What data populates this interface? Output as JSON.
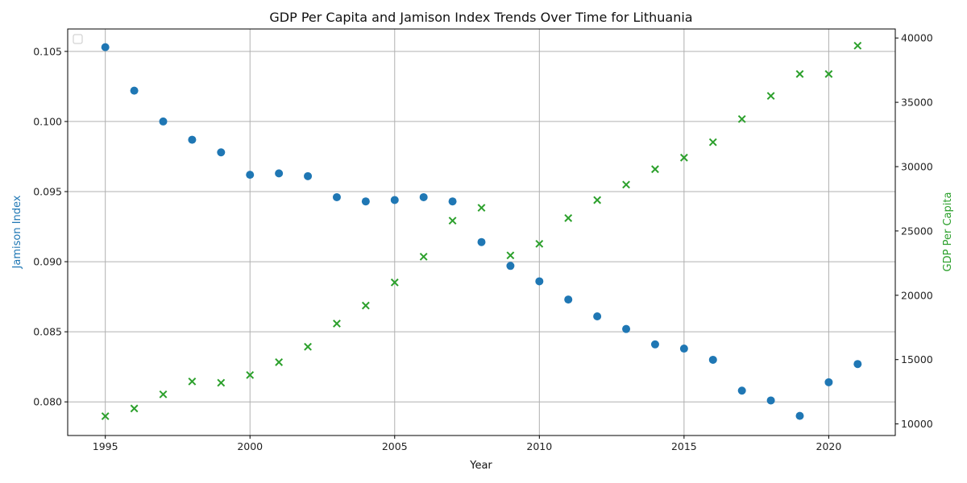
{
  "chart_data": {
    "type": "scatter",
    "title": "GDP Per Capita and Jamison Index Trends Over Time for Lithuania",
    "xlabel": "Year",
    "ylabel_left": "Jamison Index",
    "ylabel_right": "GDP Per Capita",
    "x": [
      1995,
      1996,
      1997,
      1998,
      1999,
      2000,
      2001,
      2002,
      2003,
      2004,
      2005,
      2006,
      2007,
      2008,
      2009,
      2010,
      2011,
      2012,
      2013,
      2014,
      2015,
      2016,
      2017,
      2018,
      2019,
      2020,
      2021
    ],
    "xlim": [
      1993.7,
      2022.3
    ],
    "x_ticks": [
      1995,
      2000,
      2005,
      2010,
      2015,
      2020
    ],
    "ylim_left": [
      0.0776,
      0.1066
    ],
    "y_ticks_left": [
      "0.080",
      "0.085",
      "0.090",
      "0.095",
      "0.100",
      "0.105"
    ],
    "ylim_right": [
      9100,
      40700
    ],
    "y_ticks_right": [
      "10000",
      "15000",
      "20000",
      "25000",
      "30000",
      "35000",
      "40000"
    ],
    "grid": true,
    "legend": "top-left (empty)",
    "series": [
      {
        "axis": "left",
        "marker": "circle",
        "color": "#1f77b4",
        "values": [
          0.1053,
          0.1022,
          0.1,
          0.0987,
          0.0978,
          0.0962,
          0.0963,
          0.0961,
          0.0946,
          0.0943,
          0.0944,
          0.0946,
          0.0943,
          0.0914,
          0.0897,
          0.0886,
          0.0873,
          0.0861,
          0.0852,
          0.0841,
          0.0838,
          0.083,
          0.0808,
          0.0801,
          0.079,
          0.0814,
          0.0827
        ]
      },
      {
        "axis": "right",
        "marker": "x",
        "color": "#2ca02c",
        "values": [
          10600,
          11200,
          12300,
          13300,
          13200,
          13800,
          14800,
          16000,
          17800,
          19200,
          21000,
          23000,
          25800,
          26800,
          23100,
          24000,
          26000,
          27400,
          28600,
          29800,
          30700,
          31900,
          33700,
          35500,
          37200,
          37200,
          39400
        ]
      }
    ]
  }
}
